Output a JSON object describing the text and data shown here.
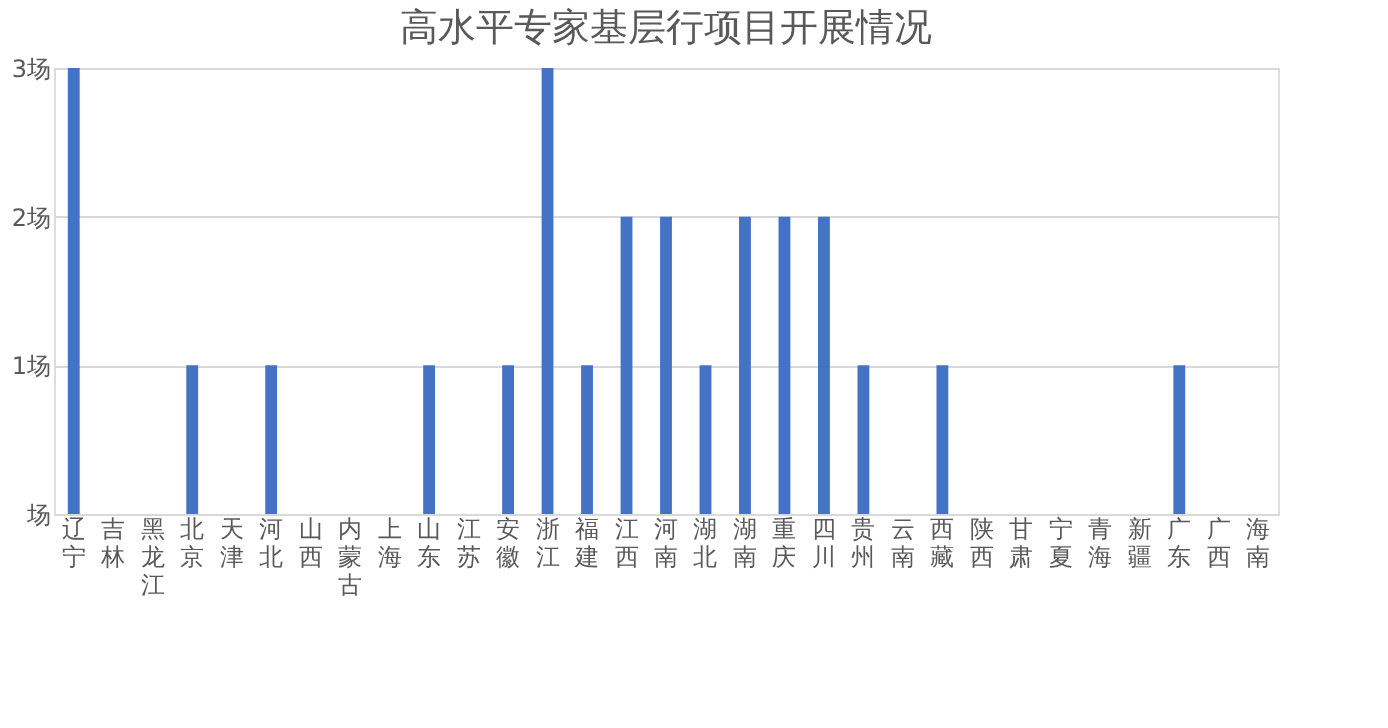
{
  "chart_data": {
    "type": "bar",
    "title": "高水平专家基层行项目开展情况",
    "categories": [
      "辽宁",
      "吉林",
      "黑龙江",
      "北京",
      "天津",
      "河北",
      "山西",
      "内蒙古",
      "上海",
      "山东",
      "江苏",
      "安徽",
      "浙江",
      "福建",
      "江西",
      "河南",
      "湖北",
      "湖南",
      "重庆",
      "四川",
      "贵州",
      "云南",
      "西藏",
      "陕西",
      "甘肃",
      "宁夏",
      "青海",
      "新疆",
      "广东",
      "广西",
      "海南"
    ],
    "values": [
      3,
      0,
      0,
      1,
      0,
      1,
      0,
      0,
      0,
      1,
      0,
      1,
      3,
      1,
      2,
      2,
      1,
      2,
      2,
      2,
      1,
      0,
      1,
      0,
      0,
      0,
      0,
      0,
      1,
      0,
      0
    ],
    "color": "#4472c4",
    "ylim": [
      0,
      3
    ],
    "yticks": [
      {
        "value": 0,
        "label": "场"
      },
      {
        "value": 1,
        "label": "1场"
      },
      {
        "value": 2,
        "label": "2场"
      },
      {
        "value": 3,
        "label": "3场"
      }
    ],
    "grid": "y"
  }
}
